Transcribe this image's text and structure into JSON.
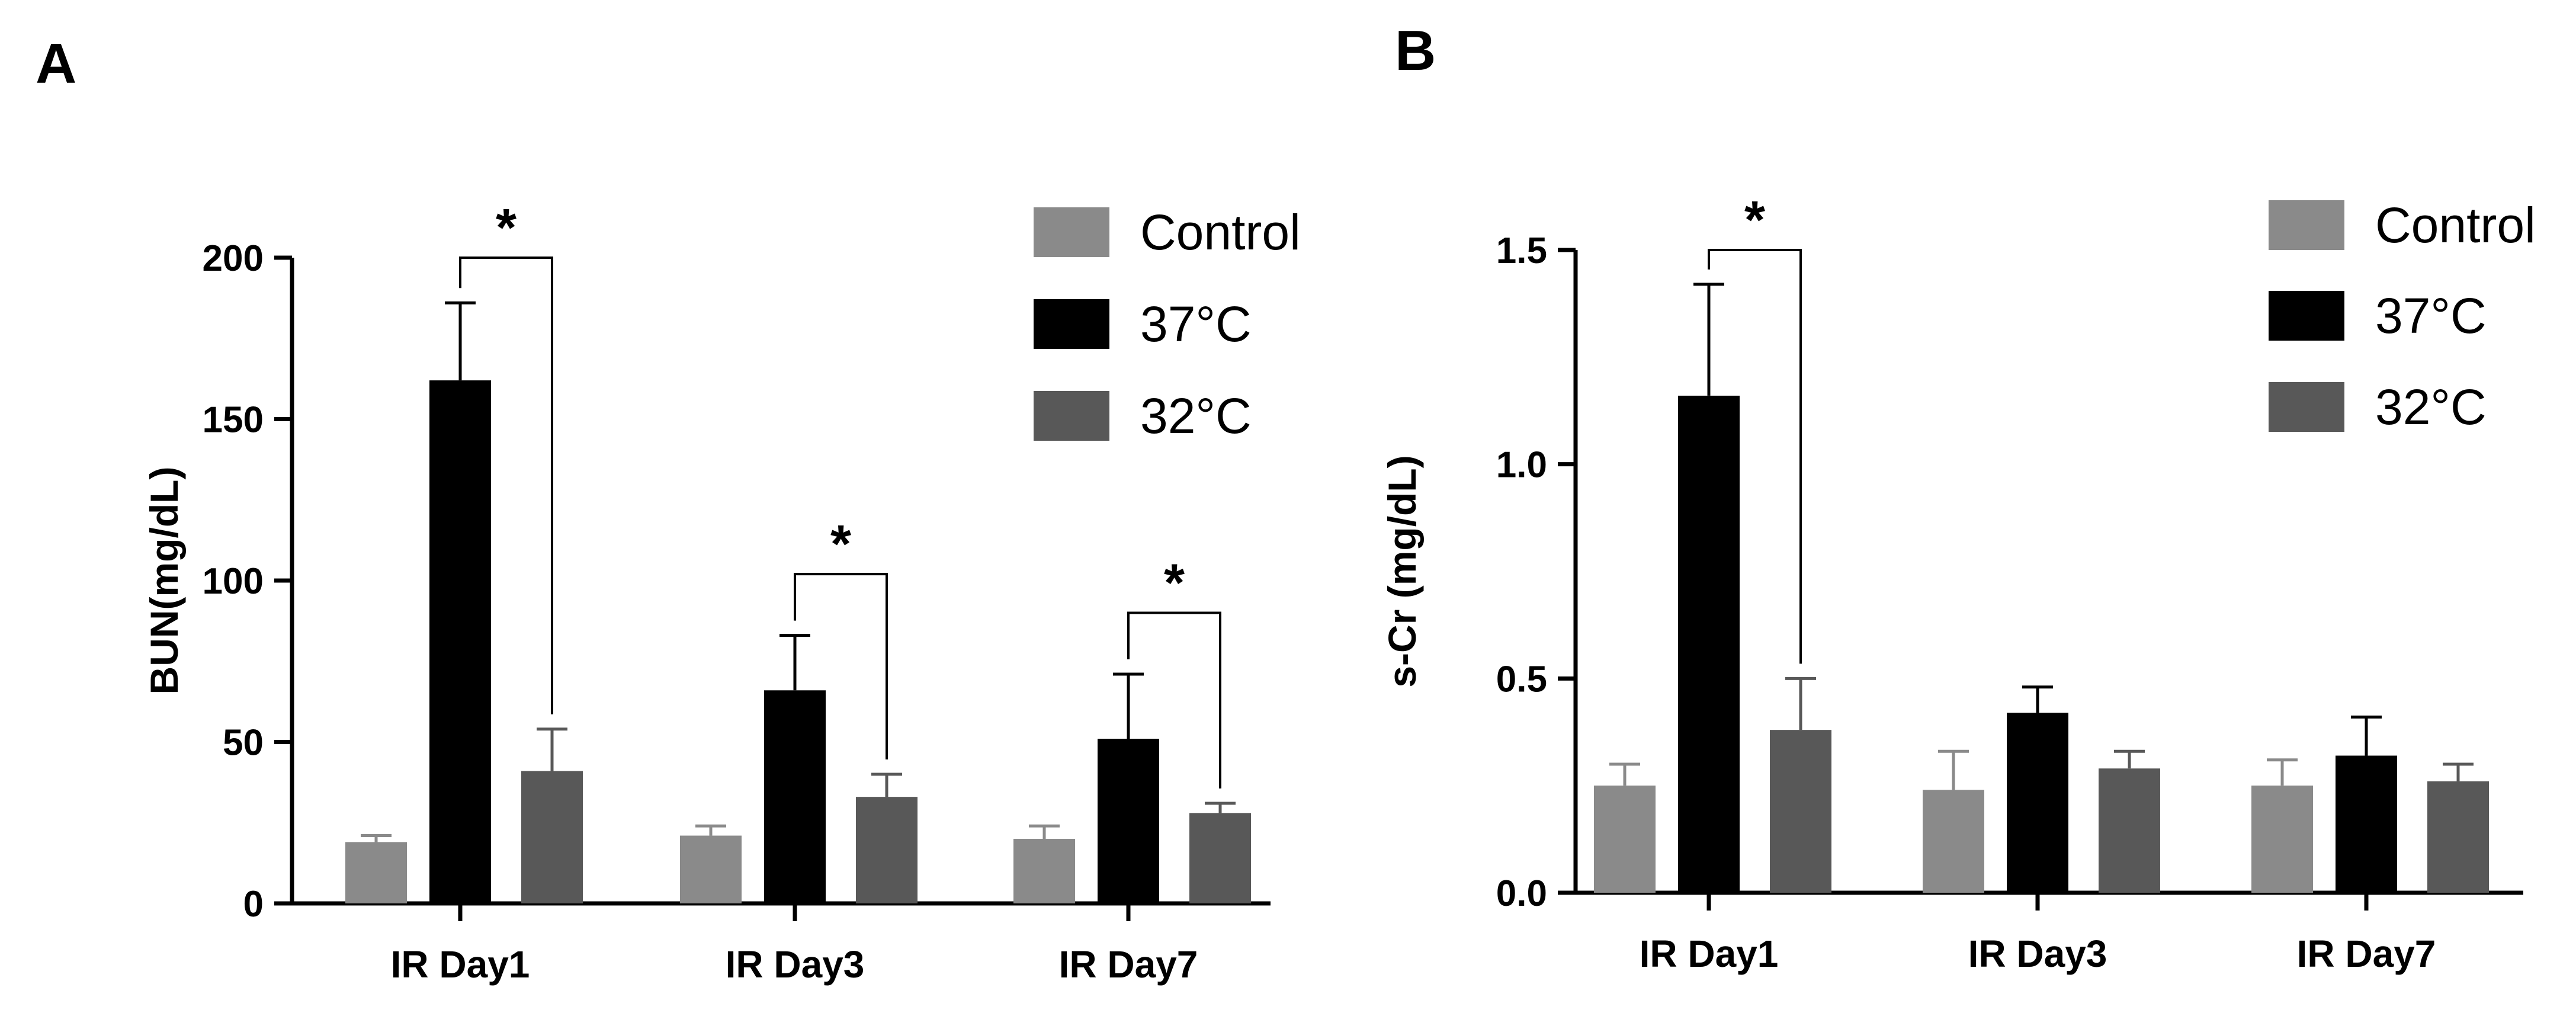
{
  "chart_data": [
    {
      "panel": "A",
      "type": "bar",
      "ylabel": "BUN(mg/dL)",
      "xlabel": "",
      "ylim": [
        0,
        200
      ],
      "yticks": [
        0,
        50,
        100,
        150,
        200
      ],
      "categories": [
        "IR Day1",
        "IR Day3",
        "IR Day7"
      ],
      "series": [
        {
          "name": "Control",
          "color": "#8a8a8a",
          "values": [
            19,
            21,
            20
          ],
          "errors": [
            2,
            3,
            4
          ]
        },
        {
          "name": "37°C",
          "color": "#000000",
          "values": [
            162,
            66,
            51
          ],
          "errors": [
            24,
            17,
            20
          ]
        },
        {
          "name": "32°C",
          "color": "#585858",
          "values": [
            41,
            33,
            28
          ],
          "errors": [
            13,
            7,
            3
          ]
        }
      ],
      "significance": [
        {
          "category": 0,
          "label": "*",
          "y": 200
        },
        {
          "category": 1,
          "label": "*",
          "y": 102
        },
        {
          "category": 2,
          "label": "*",
          "y": 90
        }
      ]
    },
    {
      "panel": "B",
      "type": "bar",
      "ylabel": "s-Cr (mg/dL)",
      "xlabel": "",
      "ylim": [
        0,
        1.5
      ],
      "yticks": [
        "0.0",
        "0.5",
        "1.0",
        "1.5"
      ],
      "categories": [
        "IR Day1",
        "IR Day3",
        "IR Day7"
      ],
      "series": [
        {
          "name": "Control",
          "color": "#8a8a8a",
          "values": [
            0.25,
            0.24,
            0.25
          ],
          "errors": [
            0.05,
            0.09,
            0.06
          ]
        },
        {
          "name": "37°C",
          "color": "#000000",
          "values": [
            1.16,
            0.42,
            0.32
          ],
          "errors": [
            0.26,
            0.06,
            0.09
          ]
        },
        {
          "name": "32°C",
          "color": "#585858",
          "values": [
            0.38,
            0.29,
            0.26
          ],
          "errors": [
            0.12,
            0.04,
            0.04
          ]
        }
      ],
      "significance": [
        {
          "category": 0,
          "label": "*",
          "y": 1.5
        }
      ]
    }
  ]
}
